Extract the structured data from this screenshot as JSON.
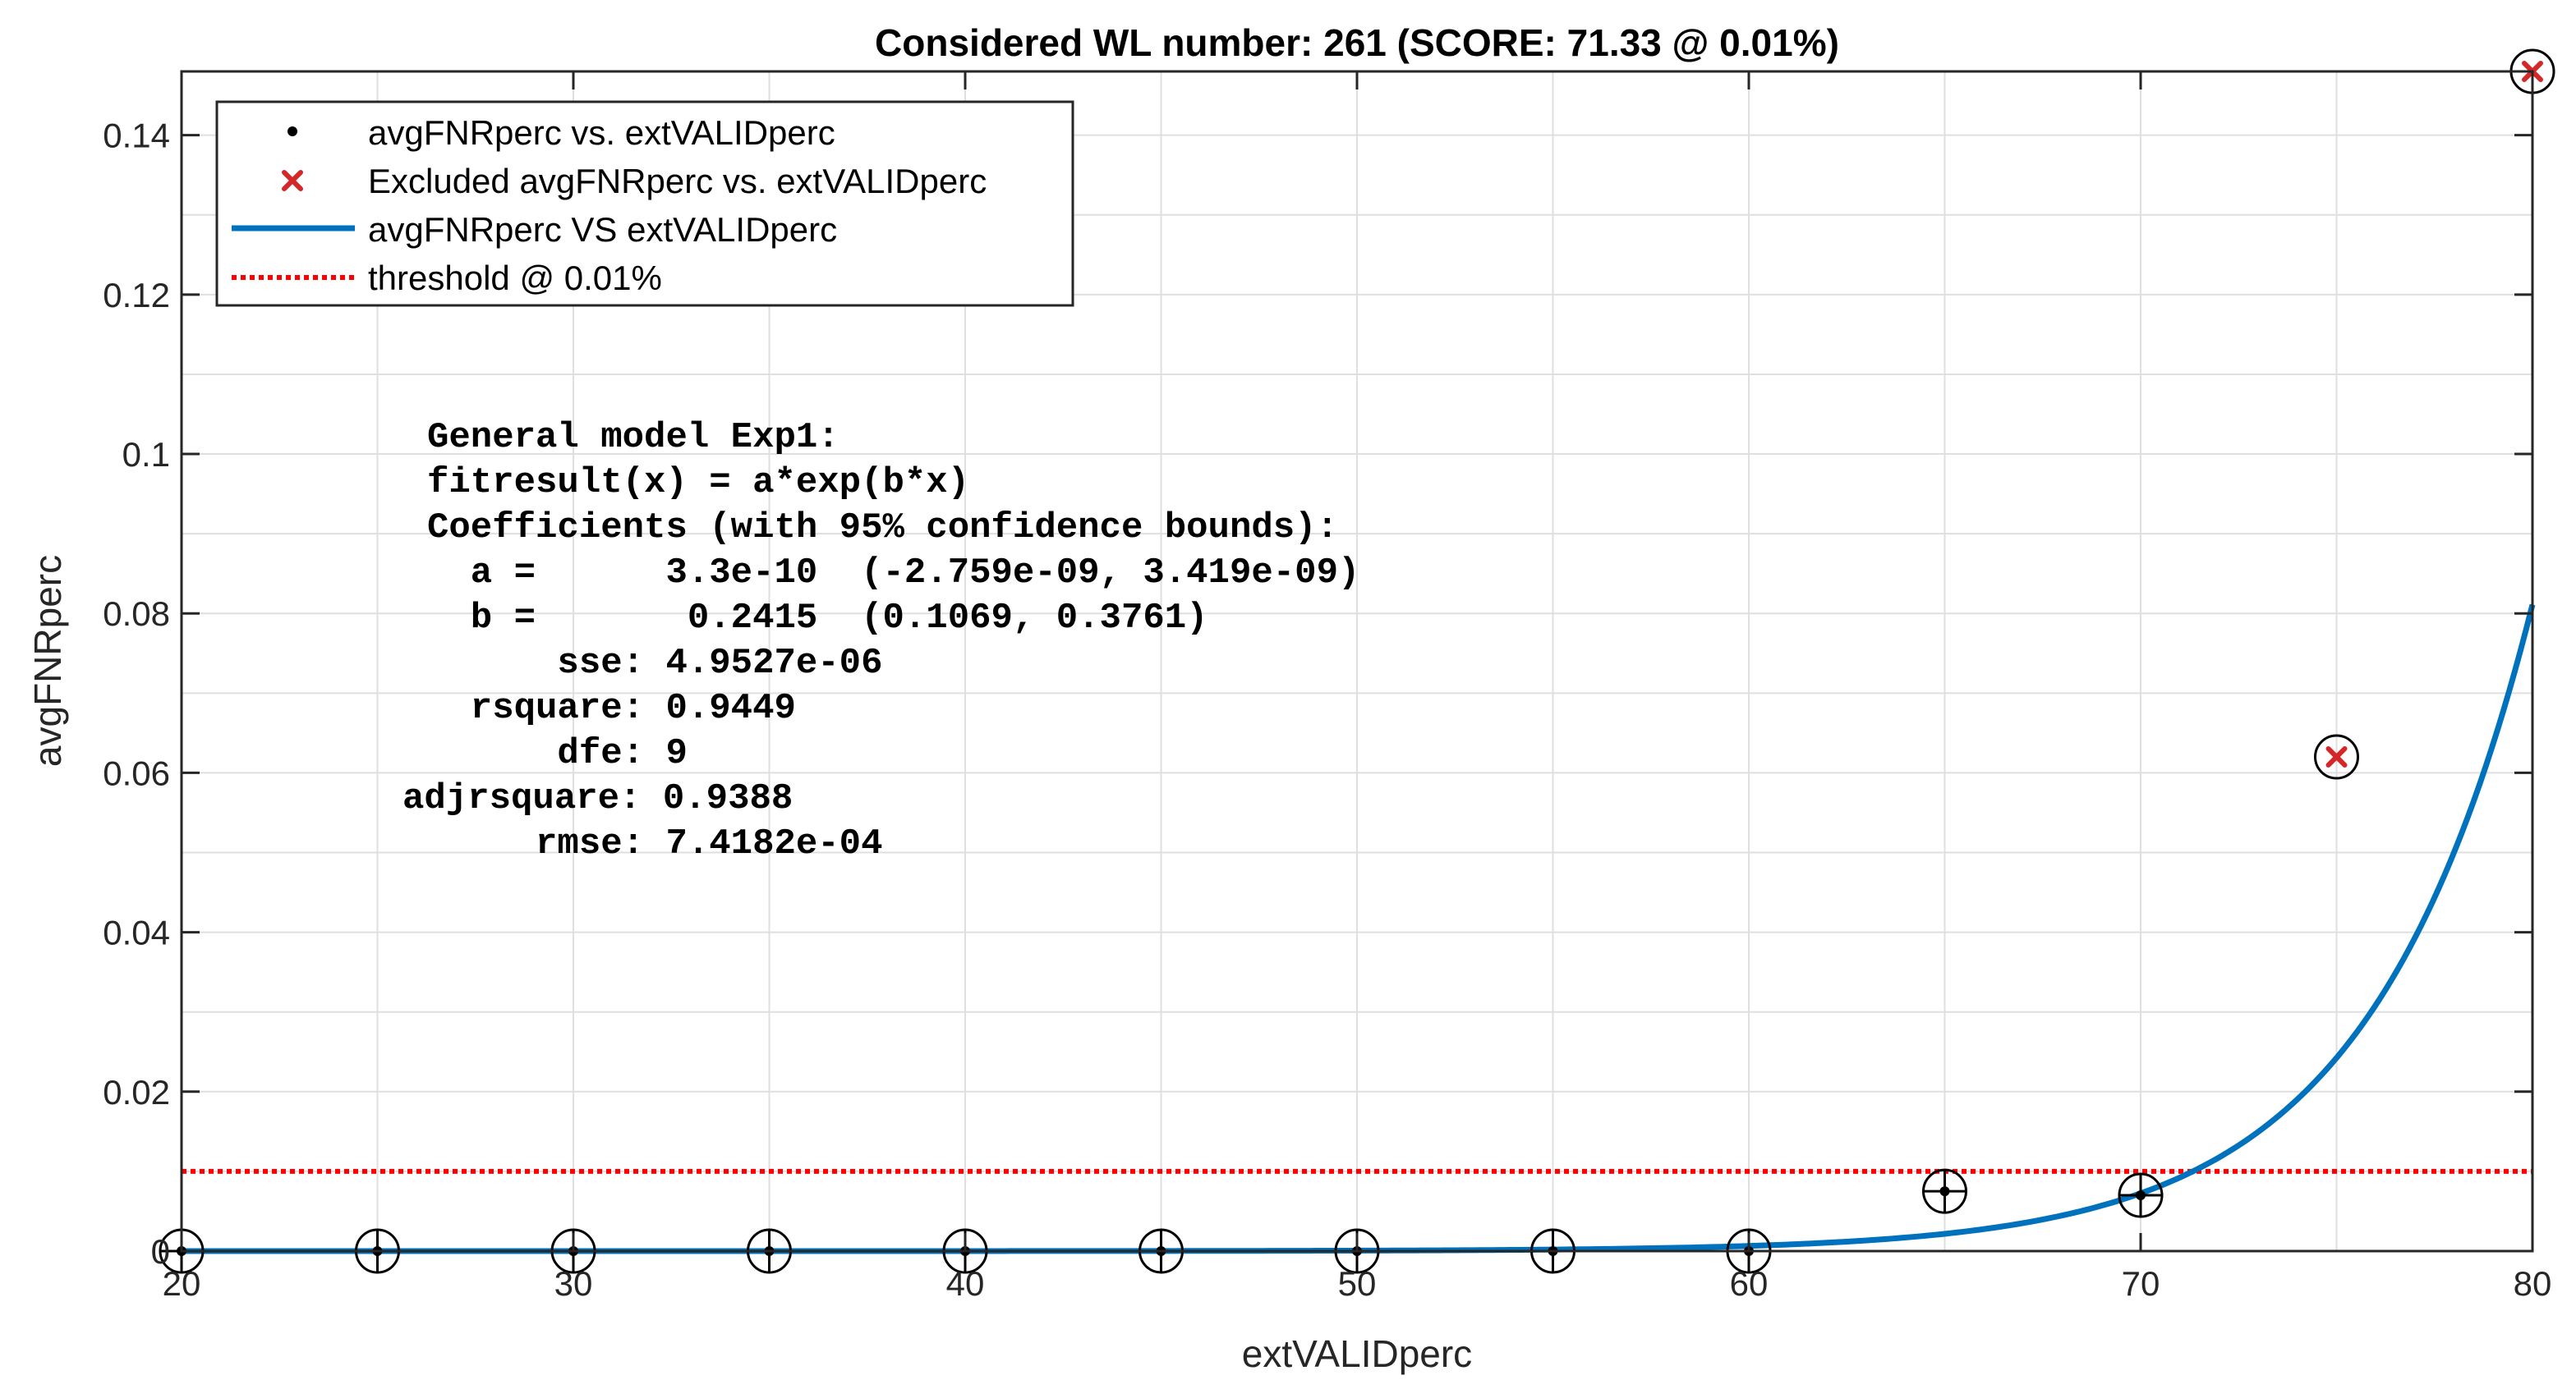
{
  "chart_data": {
    "type": "scatter",
    "title": "Considered WL number: 261 (SCORE: 71.33 @ 0.01%)",
    "xlabel": "extVALIDperc",
    "ylabel": "avgFNRperc",
    "xlim": [
      20,
      80
    ],
    "ylim": [
      0,
      0.148
    ],
    "x_ticks": [
      20,
      30,
      40,
      50,
      60,
      70,
      80
    ],
    "x_tick_labels": [
      "20",
      "30",
      "40",
      "50",
      "60",
      "70",
      "80"
    ],
    "y_ticks": [
      0,
      0.02,
      0.04,
      0.06,
      0.08,
      0.1,
      0.12,
      0.14
    ],
    "y_tick_labels": [
      "0",
      "0.02",
      "0.04",
      "0.06",
      "0.08",
      "0.1",
      "0.12",
      "0.14"
    ],
    "grid": true,
    "legend_position": "top-left",
    "legend": [
      "avgFNRperc vs. extVALIDperc",
      "Excluded avgFNRperc vs. extVALIDperc",
      "avgFNRperc VS extVALIDperc",
      "threshold @ 0.01%"
    ],
    "series": [
      {
        "x": [
          20,
          25,
          30,
          35,
          40,
          45,
          50,
          55,
          60,
          65,
          70
        ],
        "y": [
          0,
          0,
          0,
          0,
          0,
          0,
          0,
          0,
          0,
          0.0075,
          0.007
        ],
        "color": "#000000"
      },
      {
        "x": [
          75,
          80
        ],
        "y": [
          0.062,
          0.148
        ],
        "color": "#d62728"
      }
    ],
    "fit": {
      "a": 3.3e-10,
      "b": 0.2415,
      "x_range": [
        20,
        80
      ],
      "color": "#0072bd"
    },
    "threshold": {
      "y": 0.01,
      "color": "#ff0000"
    },
    "colors": {
      "axis": "#262626",
      "grid": "#dfdfdf",
      "legend_border": "#262626"
    },
    "annotation_lines": [
      "General model Exp1:",
      "fitresult(x) = a*exp(b*x)",
      "Coefficients (with 95% confidence bounds):",
      "  a =      3.3e-10  (-2.759e-09, 3.419e-09)",
      "  b =       0.2415  (0.1069, 0.3761)",
      "      sse: 4.9527e-06",
      "  rsquare: 0.9449",
      "      dfe: 9",
      "adjrsquare: 0.9388",
      "     rmse: 7.4182e-04"
    ]
  }
}
